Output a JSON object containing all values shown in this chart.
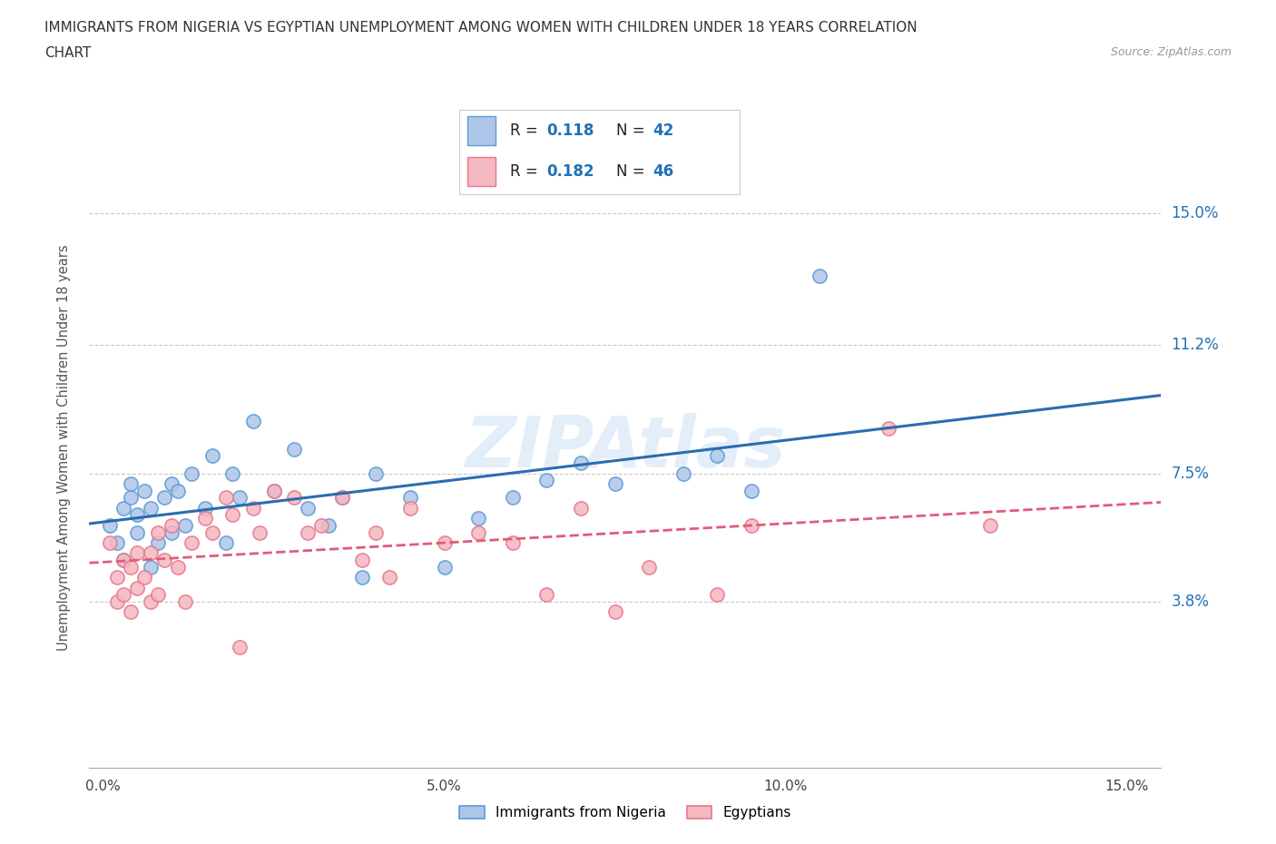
{
  "title_line1": "IMMIGRANTS FROM NIGERIA VS EGYPTIAN UNEMPLOYMENT AMONG WOMEN WITH CHILDREN UNDER 18 YEARS CORRELATION",
  "title_line2": "CHART",
  "source": "Source: ZipAtlas.com",
  "ylabel": "Unemployment Among Women with Children Under 18 years",
  "xlim": [
    -0.002,
    0.155
  ],
  "ylim": [
    -0.01,
    0.175
  ],
  "plot_ylim": [
    -0.01,
    0.175
  ],
  "yticks": [
    0.038,
    0.075,
    0.112,
    0.15
  ],
  "ytick_labels": [
    "3.8%",
    "7.5%",
    "11.2%",
    "15.0%"
  ],
  "xticks": [
    0.0,
    0.05,
    0.1,
    0.15
  ],
  "xtick_labels": [
    "0.0%",
    "5.0%",
    "10.0%",
    "15.0%"
  ],
  "color_nigeria_fill": "#aec6e8",
  "color_nigeria_edge": "#5b9bd5",
  "color_egypt_fill": "#f4b8c1",
  "color_egypt_edge": "#e8768a",
  "color_line_nigeria": "#2b6cb0",
  "color_line_egypt": "#e05c7a",
  "R_nigeria": 0.118,
  "N_nigeria": 42,
  "R_egypt": 0.182,
  "N_egypt": 46,
  "legend_labels": [
    "Immigrants from Nigeria",
    "Egyptians"
  ],
  "watermark": "ZIPAtlas",
  "nigeria_x": [
    0.001,
    0.002,
    0.003,
    0.003,
    0.004,
    0.004,
    0.005,
    0.005,
    0.006,
    0.007,
    0.007,
    0.008,
    0.009,
    0.01,
    0.01,
    0.011,
    0.012,
    0.013,
    0.015,
    0.016,
    0.018,
    0.019,
    0.02,
    0.022,
    0.025,
    0.028,
    0.03,
    0.033,
    0.035,
    0.038,
    0.04,
    0.045,
    0.05,
    0.055,
    0.06,
    0.065,
    0.07,
    0.075,
    0.085,
    0.09,
    0.095,
    0.105
  ],
  "nigeria_y": [
    0.06,
    0.055,
    0.065,
    0.05,
    0.068,
    0.072,
    0.058,
    0.063,
    0.07,
    0.048,
    0.065,
    0.055,
    0.068,
    0.072,
    0.058,
    0.07,
    0.06,
    0.075,
    0.065,
    0.08,
    0.055,
    0.075,
    0.068,
    0.09,
    0.07,
    0.082,
    0.065,
    0.06,
    0.068,
    0.045,
    0.075,
    0.068,
    0.048,
    0.062,
    0.068,
    0.073,
    0.078,
    0.072,
    0.075,
    0.08,
    0.07,
    0.132
  ],
  "egypt_x": [
    0.001,
    0.002,
    0.002,
    0.003,
    0.003,
    0.004,
    0.004,
    0.005,
    0.005,
    0.006,
    0.007,
    0.007,
    0.008,
    0.008,
    0.009,
    0.01,
    0.011,
    0.012,
    0.013,
    0.015,
    0.016,
    0.018,
    0.019,
    0.02,
    0.022,
    0.023,
    0.025,
    0.028,
    0.03,
    0.032,
    0.035,
    0.038,
    0.04,
    0.042,
    0.045,
    0.05,
    0.055,
    0.06,
    0.065,
    0.07,
    0.075,
    0.08,
    0.09,
    0.095,
    0.115,
    0.13
  ],
  "egypt_y": [
    0.055,
    0.045,
    0.038,
    0.05,
    0.04,
    0.035,
    0.048,
    0.042,
    0.052,
    0.045,
    0.038,
    0.052,
    0.04,
    0.058,
    0.05,
    0.06,
    0.048,
    0.038,
    0.055,
    0.062,
    0.058,
    0.068,
    0.063,
    0.025,
    0.065,
    0.058,
    0.07,
    0.068,
    0.058,
    0.06,
    0.068,
    0.05,
    0.058,
    0.045,
    0.065,
    0.055,
    0.058,
    0.055,
    0.04,
    0.065,
    0.035,
    0.048,
    0.04,
    0.06,
    0.088,
    0.06
  ]
}
